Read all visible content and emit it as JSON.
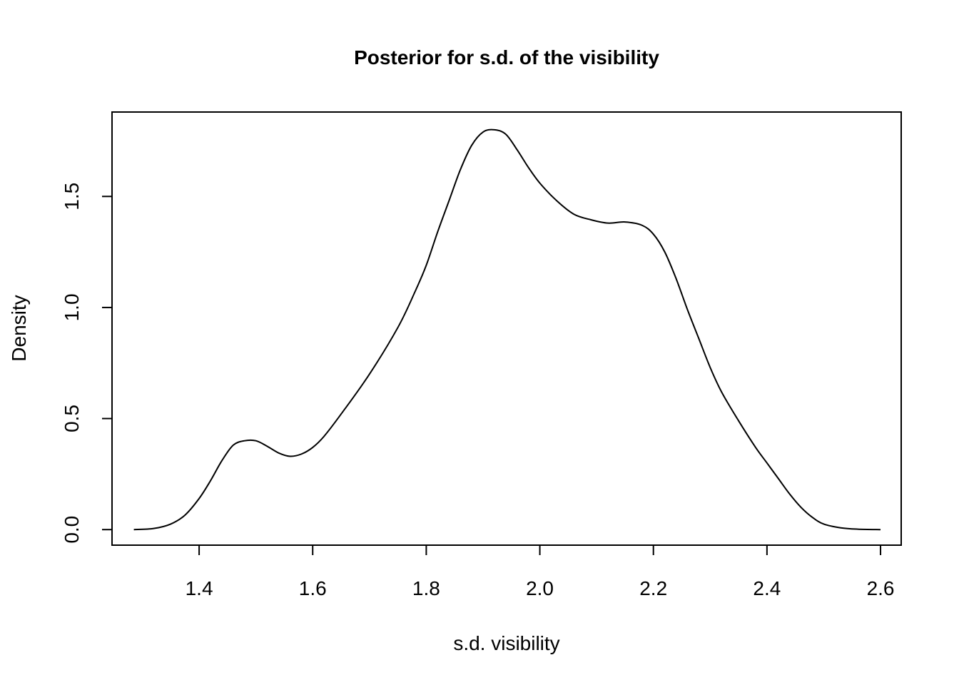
{
  "chart_data": {
    "type": "line",
    "title": "Posterior for s.d. of the visibility",
    "xlabel": "s.d. visibility",
    "ylabel": "Density",
    "xlim": [
      1.2466,
      2.6364
    ],
    "ylim": [
      -0.07,
      1.88
    ],
    "x_ticks": [
      {
        "value": 1.4,
        "label": "1.4"
      },
      {
        "value": 1.6,
        "label": "1.6"
      },
      {
        "value": 1.8,
        "label": "1.8"
      },
      {
        "value": 2.0,
        "label": "2.0"
      },
      {
        "value": 2.2,
        "label": "2.2"
      },
      {
        "value": 2.4,
        "label": "2.4"
      },
      {
        "value": 2.6,
        "label": "2.6"
      }
    ],
    "y_ticks": [
      {
        "value": 0.0,
        "label": "0.0"
      },
      {
        "value": 0.5,
        "label": "0.5"
      },
      {
        "value": 1.0,
        "label": "1.0"
      },
      {
        "value": 1.5,
        "label": "1.5"
      }
    ],
    "grid": false,
    "series": [
      {
        "name": "",
        "color": "#000000",
        "x": [
          1.285,
          1.32,
          1.35,
          1.375,
          1.4,
          1.42,
          1.44,
          1.46,
          1.48,
          1.5,
          1.52,
          1.54,
          1.56,
          1.58,
          1.6,
          1.62,
          1.65,
          1.7,
          1.75,
          1.78,
          1.8,
          1.82,
          1.84,
          1.86,
          1.88,
          1.9,
          1.92,
          1.94,
          1.96,
          1.98,
          2.0,
          2.03,
          2.06,
          2.09,
          2.12,
          2.15,
          2.18,
          2.2,
          2.22,
          2.24,
          2.26,
          2.28,
          2.3,
          2.32,
          2.35,
          2.38,
          2.4,
          2.42,
          2.44,
          2.46,
          2.48,
          2.5,
          2.53,
          2.56,
          2.6
        ],
        "y": [
          0.0,
          0.005,
          0.025,
          0.065,
          0.14,
          0.22,
          0.31,
          0.38,
          0.4,
          0.4,
          0.375,
          0.345,
          0.33,
          0.34,
          0.37,
          0.42,
          0.52,
          0.7,
          0.91,
          1.07,
          1.19,
          1.34,
          1.48,
          1.62,
          1.73,
          1.79,
          1.8,
          1.78,
          1.71,
          1.63,
          1.56,
          1.48,
          1.42,
          1.395,
          1.38,
          1.385,
          1.37,
          1.33,
          1.25,
          1.13,
          0.99,
          0.86,
          0.73,
          0.62,
          0.49,
          0.37,
          0.3,
          0.23,
          0.16,
          0.1,
          0.055,
          0.025,
          0.008,
          0.002,
          0.0
        ]
      }
    ]
  }
}
